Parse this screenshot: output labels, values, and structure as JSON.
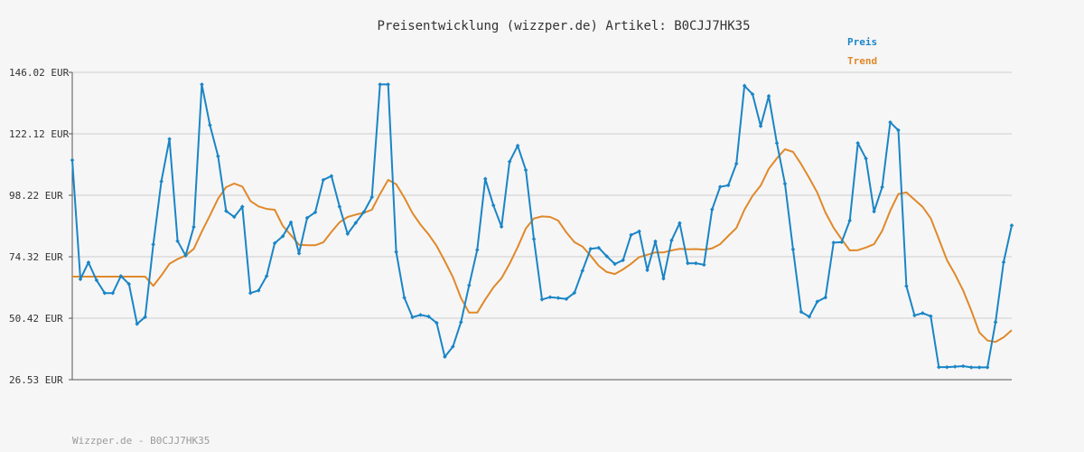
{
  "chart_data": {
    "type": "line",
    "title": "Preisentwicklung (wizzper.de) Artikel: B0CJJ7HK35",
    "footer": "Wizzper.de - B0CJJ7HK35",
    "xlabel": "",
    "ylabel": "",
    "ylim": [
      26.53,
      146.02
    ],
    "yticks": [
      26.53,
      50.42,
      74.32,
      98.22,
      122.12,
      146.02
    ],
    "ytick_labels": [
      "26.53 EUR",
      "50.42 EUR",
      "74.32 EUR",
      "98.22 EUR",
      "122.12 EUR",
      "146.02 EUR"
    ],
    "grid": true,
    "legend_position": "top-right",
    "series": [
      {
        "name": "Preis",
        "color": "#1a85c6",
        "values": [
          111.9,
          65.6,
          72.1,
          65.2,
          60.2,
          60.2,
          66.8,
          63.7,
          48.2,
          50.9,
          79.1,
          103.6,
          120.1,
          80.4,
          74.8,
          85.9,
          141.3,
          125.5,
          113.4,
          92.1,
          89.8,
          93.8,
          60.2,
          61.2,
          66.8,
          79.6,
          82.3,
          87.7,
          75.6,
          89.4,
          91.6,
          104.2,
          105.7,
          93.8,
          83.2,
          87.5,
          91.7,
          97.5,
          141.3,
          141.3,
          76.2,
          58.4,
          50.8,
          51.7,
          51.1,
          48.6,
          35.4,
          39.4,
          48.9,
          63.2,
          77.0,
          104.6,
          94.3,
          86.0,
          111.3,
          117.5,
          108.0,
          81.2,
          57.7,
          58.6,
          58.3,
          57.9,
          60.3,
          68.9,
          77.4,
          77.8,
          74.5,
          71.5,
          73.0,
          82.8,
          84.2,
          69.1,
          80.3,
          65.8,
          80.7,
          87.4,
          71.8,
          71.8,
          71.2,
          92.7,
          101.5,
          102.1,
          110.5,
          140.8,
          137.5,
          125.1,
          136.8,
          118.5,
          102.7,
          77.2,
          52.9,
          51.0,
          56.9,
          58.5,
          79.8,
          80.0,
          88.4,
          118.5,
          112.5,
          91.9,
          101.4,
          126.6,
          123.5,
          62.9,
          51.5,
          52.4,
          51.2,
          31.4,
          31.4,
          31.6,
          31.8,
          31.3,
          31.3,
          31.3,
          48.9,
          72.2,
          86.5
        ]
      },
      {
        "name": "Trend",
        "color": "#e0892a",
        "values": [
          66.6,
          66.6,
          66.6,
          66.6,
          66.6,
          66.6,
          66.6,
          66.6,
          66.6,
          66.6,
          63.0,
          67.0,
          71.6,
          73.4,
          74.8,
          77.4,
          84.1,
          90.4,
          96.9,
          101.4,
          102.8,
          101.6,
          96.0,
          93.9,
          92.9,
          92.6,
          86.3,
          82.7,
          79.0,
          78.8,
          78.8,
          79.9,
          84.0,
          87.7,
          89.8,
          90.7,
          91.4,
          92.6,
          98.7,
          104.2,
          102.5,
          97.3,
          91.3,
          86.8,
          83.0,
          78.5,
          72.6,
          66.4,
          58.3,
          52.6,
          52.6,
          57.7,
          62.4,
          66.0,
          71.6,
          78.1,
          85.3,
          89.2,
          90.0,
          89.8,
          88.4,
          83.8,
          80.0,
          78.3,
          74.7,
          70.8,
          68.4,
          67.6,
          69.4,
          71.6,
          74.2,
          75.1,
          76.0,
          76.0,
          76.8,
          77.4,
          77.2,
          77.3,
          77.1,
          77.6,
          79.2,
          82.4,
          85.5,
          92.6,
          98.0,
          102.0,
          108.5,
          112.6,
          116.1,
          115.1,
          110.3,
          104.9,
          99.2,
          91.5,
          85.6,
          81.1,
          76.8,
          76.9,
          77.9,
          79.2,
          84.4,
          92.2,
          98.7,
          99.3,
          96.5,
          93.7,
          89.3,
          81.2,
          73.0,
          67.5,
          61.2,
          53.4,
          44.9,
          41.8,
          41.2,
          43.0,
          45.8
        ]
      }
    ]
  }
}
